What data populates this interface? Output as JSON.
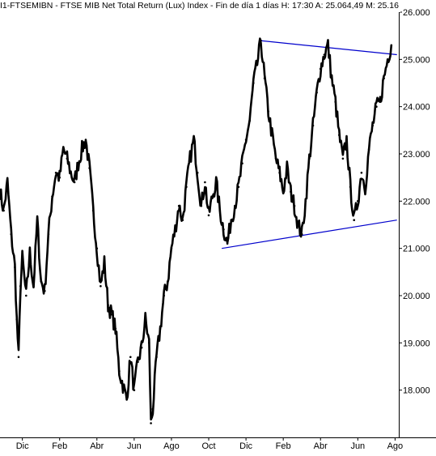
{
  "chart_data": {
    "type": "line",
    "title": "I1-FTSEMIBN - FTSE MIB Net Total Return (Lux) Index - Fin de día 1 días H: 17:30 A: 25.064,49 M: 25.16",
    "xlabel": "",
    "ylabel": "",
    "ylim": [
      17000,
      26000
    ],
    "y_ticks": [
      "26.000",
      "25.000",
      "24.000",
      "23.000",
      "22.000",
      "21.000",
      "20.000",
      "19.000",
      "18.000"
    ],
    "y_tick_values": [
      26000,
      25000,
      24000,
      23000,
      22000,
      21000,
      20000,
      19000,
      18000
    ],
    "x_ticks": [
      "Dic",
      "Feb",
      "Abr",
      "Jun",
      "Ago",
      "Oct",
      "Dic",
      "Feb",
      "Abr",
      "Jun",
      "Ago"
    ],
    "x_tick_months": [
      0,
      2,
      4,
      6,
      8,
      10,
      12,
      14,
      16,
      18,
      20
    ],
    "x_domain_months": [
      -1.2,
      20.2
    ],
    "grid": false,
    "series": [
      {
        "color": "#000000",
        "points": [
          [
            -1.2,
            22200
          ],
          [
            -1.0,
            21800
          ],
          [
            -0.8,
            22400
          ],
          [
            -0.6,
            21300
          ],
          [
            -0.4,
            20600
          ],
          [
            -0.3,
            19500
          ],
          [
            -0.2,
            18700
          ],
          [
            -0.1,
            20200
          ],
          [
            0.0,
            20800
          ],
          [
            0.2,
            20000
          ],
          [
            0.4,
            20900
          ],
          [
            0.6,
            20200
          ],
          [
            0.8,
            21600
          ],
          [
            1.0,
            20300
          ],
          [
            1.2,
            20100
          ],
          [
            1.4,
            21300
          ],
          [
            1.6,
            22100
          ],
          [
            1.8,
            22600
          ],
          [
            2.0,
            22500
          ],
          [
            2.2,
            23100
          ],
          [
            2.4,
            22900
          ],
          [
            2.6,
            22600
          ],
          [
            2.8,
            22400
          ],
          [
            3.0,
            22800
          ],
          [
            3.2,
            23100
          ],
          [
            3.4,
            23300
          ],
          [
            3.6,
            22700
          ],
          [
            3.8,
            21800
          ],
          [
            4.0,
            21000
          ],
          [
            4.2,
            20200
          ],
          [
            4.4,
            20700
          ],
          [
            4.6,
            19800
          ],
          [
            4.8,
            19600
          ],
          [
            5.0,
            19300
          ],
          [
            5.2,
            18400
          ],
          [
            5.4,
            18100
          ],
          [
            5.6,
            17800
          ],
          [
            5.8,
            18700
          ],
          [
            6.0,
            18000
          ],
          [
            6.2,
            18600
          ],
          [
            6.4,
            18900
          ],
          [
            6.6,
            19500
          ],
          [
            6.8,
            19000
          ],
          [
            6.9,
            17300
          ],
          [
            7.0,
            17600
          ],
          [
            7.2,
            18700
          ],
          [
            7.4,
            19300
          ],
          [
            7.6,
            20000
          ],
          [
            7.8,
            20300
          ],
          [
            8.0,
            21000
          ],
          [
            8.2,
            21400
          ],
          [
            8.4,
            21900
          ],
          [
            8.6,
            21600
          ],
          [
            8.8,
            22300
          ],
          [
            9.0,
            22900
          ],
          [
            9.2,
            23300
          ],
          [
            9.4,
            22600
          ],
          [
            9.6,
            21900
          ],
          [
            9.8,
            22400
          ],
          [
            10.0,
            21700
          ],
          [
            10.2,
            22100
          ],
          [
            10.4,
            22400
          ],
          [
            10.6,
            21800
          ],
          [
            10.8,
            21400
          ],
          [
            11.0,
            21100
          ],
          [
            11.2,
            21600
          ],
          [
            11.4,
            21900
          ],
          [
            11.6,
            22300
          ],
          [
            11.8,
            22800
          ],
          [
            12.0,
            23300
          ],
          [
            12.2,
            23700
          ],
          [
            12.4,
            24500
          ],
          [
            12.6,
            24900
          ],
          [
            12.8,
            25400
          ],
          [
            13.0,
            24600
          ],
          [
            13.2,
            23900
          ],
          [
            13.4,
            23400
          ],
          [
            13.6,
            22900
          ],
          [
            13.8,
            22600
          ],
          [
            14.0,
            22200
          ],
          [
            14.2,
            22700
          ],
          [
            14.4,
            22200
          ],
          [
            14.6,
            21900
          ],
          [
            14.8,
            21500
          ],
          [
            15.0,
            21300
          ],
          [
            15.2,
            22000
          ],
          [
            15.4,
            22900
          ],
          [
            15.6,
            23600
          ],
          [
            15.8,
            24300
          ],
          [
            16.0,
            24800
          ],
          [
            16.2,
            25100
          ],
          [
            16.4,
            25300
          ],
          [
            16.6,
            24600
          ],
          [
            16.8,
            24100
          ],
          [
            17.0,
            23400
          ],
          [
            17.2,
            22900
          ],
          [
            17.4,
            23300
          ],
          [
            17.6,
            22300
          ],
          [
            17.8,
            21600
          ],
          [
            18.0,
            22000
          ],
          [
            18.2,
            22600
          ],
          [
            18.4,
            22300
          ],
          [
            18.6,
            23100
          ],
          [
            18.8,
            23600
          ],
          [
            19.0,
            24000
          ],
          [
            19.2,
            24100
          ],
          [
            19.4,
            24600
          ],
          [
            19.6,
            25000
          ],
          [
            19.8,
            25300
          ]
        ]
      }
    ],
    "trendlines": [
      {
        "color": "#0000cc",
        "points": [
          [
            12.7,
            25400
          ],
          [
            20.1,
            25100
          ]
        ]
      },
      {
        "color": "#0000cc",
        "points": [
          [
            10.7,
            21000
          ],
          [
            20.1,
            21600
          ]
        ]
      }
    ]
  }
}
